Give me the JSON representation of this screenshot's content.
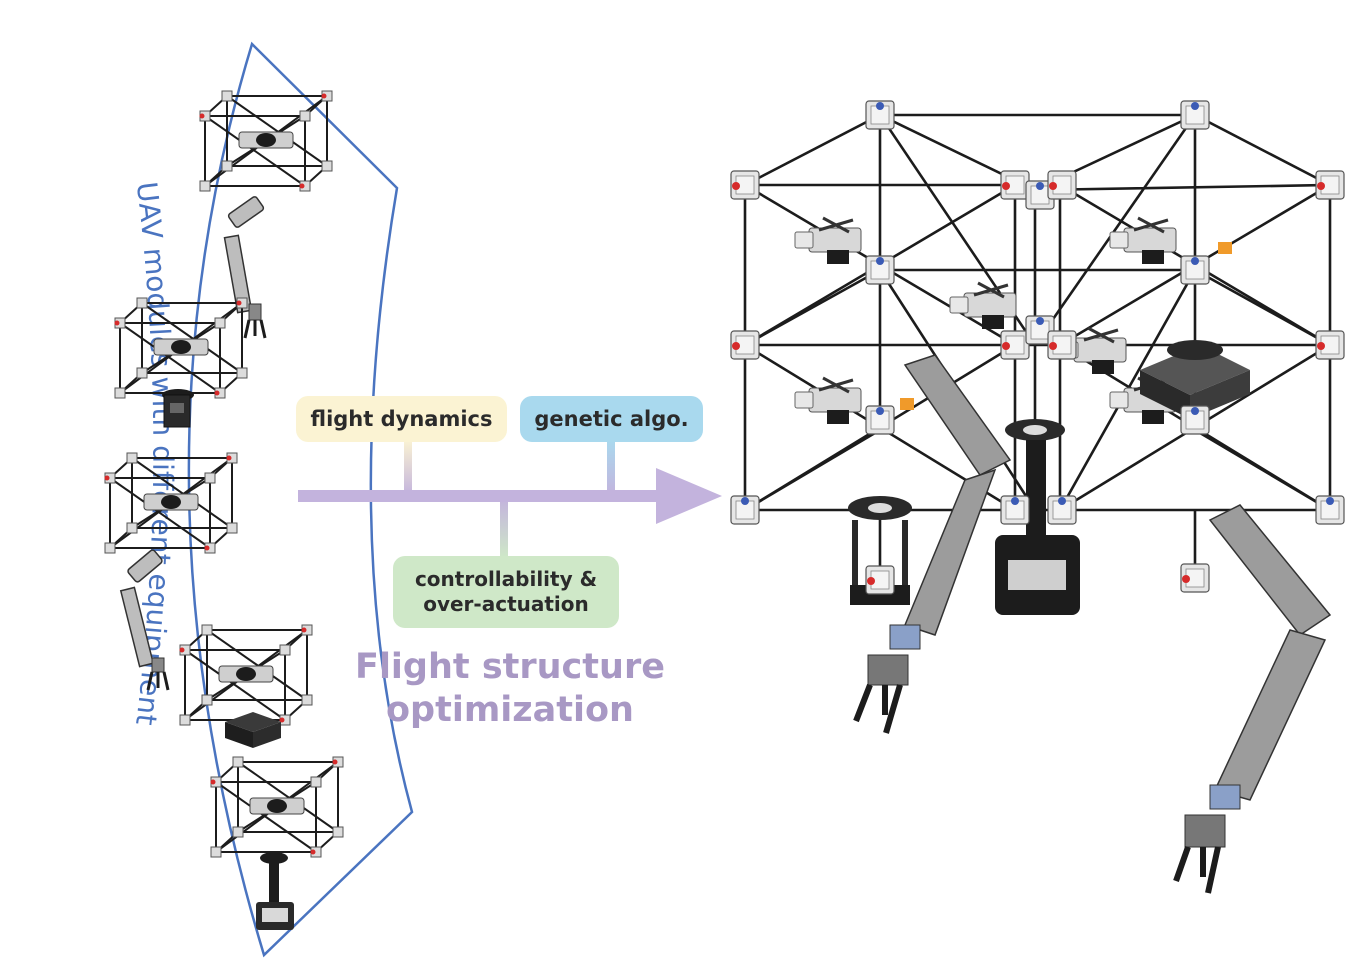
{
  "modules_panel": {
    "label": "UAV modules with different equipment"
  },
  "factors": {
    "flight_dynamics": "flight dynamics",
    "genetic_algo": "genetic algo.",
    "controllability_line1": "controllability &",
    "controllability_line2": "over-actuation"
  },
  "process": {
    "title_line1": "Flight structure",
    "title_line2": "optimization"
  },
  "colors": {
    "panel_outline": "#4a74c0",
    "panel_text": "#4a74c0",
    "arrow": "#c3b3dd",
    "flight_dynamics_fill": "#fbf3d3",
    "genetic_fill": "#a9d9ee",
    "controllability_fill": "#cfe8c8",
    "title": "#a898c4",
    "frame": "#1c1c1c"
  },
  "icons": [
    "uav-module-arm-icon",
    "uav-module-camera-icon",
    "uav-module-gripper-icon",
    "uav-module-box-icon",
    "uav-module-handle-icon",
    "assembled-uav-structure-icon"
  ]
}
